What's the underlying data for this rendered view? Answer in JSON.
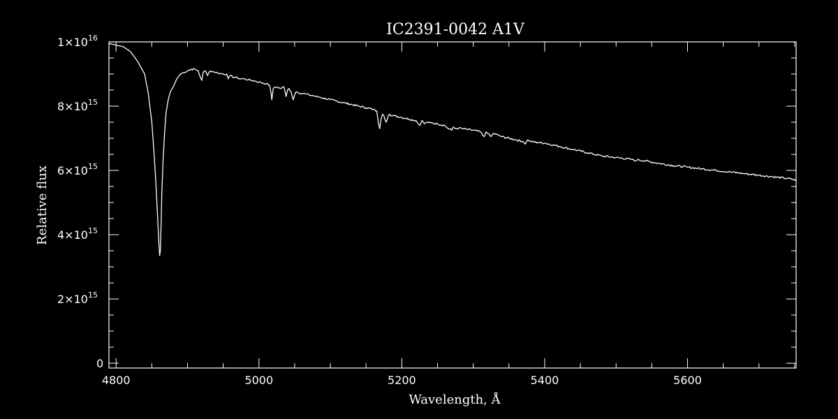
{
  "chart_data": {
    "type": "line",
    "title": "IC2391-0042  A1V",
    "xlabel": "Wavelength, Å",
    "ylabel": "Relative flux",
    "xlim": [
      4790,
      5752
    ],
    "ylim": [
      -150000000000000.0,
      1e+16
    ],
    "x_ticks": [
      4800,
      5000,
      5200,
      5400,
      5600
    ],
    "x_tick_labels": [
      "4800",
      "5000",
      "5200",
      "5400",
      "5600"
    ],
    "x_minor_step": 50,
    "y_ticks": [
      {
        "value": 0,
        "mantissa": "0",
        "exponent": ""
      },
      {
        "value": 2000000000000000.0,
        "mantissa": "2×10",
        "exponent": "15"
      },
      {
        "value": 4000000000000000.0,
        "mantissa": "4×10",
        "exponent": "15"
      },
      {
        "value": 6000000000000000.0,
        "mantissa": "6×10",
        "exponent": "15"
      },
      {
        "value": 8000000000000000.0,
        "mantissa": "8×10",
        "exponent": "15"
      },
      {
        "value": 1e+16,
        "mantissa": "1×10",
        "exponent": "16"
      }
    ],
    "y_minor_step": 500000000000000.0,
    "grid": false,
    "colors": {
      "background": "#000000",
      "foreground": "#ffffff",
      "line": "#ffffff"
    },
    "series": [
      {
        "x": [
          4790,
          4800,
          4810,
          4820,
          4830,
          4840,
          4845,
          4850,
          4853,
          4856,
          4858,
          4860,
          4861,
          4862,
          4863,
          4864,
          4866,
          4868,
          4870,
          4873,
          4876,
          4880,
          4885,
          4890,
          4895,
          4900,
          4905,
          4910,
          4915,
          4918,
          4920,
          4922,
          4925,
          4928,
          4930,
          4932,
          4935,
          4940,
          4945,
          4950,
          4955,
          4957,
          4960,
          4965,
          4970,
          4975,
          4980,
          4985,
          4990,
          4995,
          5000,
          5005,
          5010,
          5015,
          5017,
          5018,
          5020,
          5025,
          5030,
          5035,
          5038,
          5040,
          5042,
          5045,
          5048,
          5050,
          5052,
          5055,
          5060,
          5065,
          5070,
          5075,
          5080,
          5085,
          5090,
          5100,
          5110,
          5120,
          5130,
          5140,
          5150,
          5160,
          5165,
          5167,
          5169,
          5171,
          5173,
          5175,
          5178,
          5181,
          5183,
          5186,
          5190,
          5200,
          5210,
          5220,
          5225,
          5228,
          5232,
          5235,
          5240,
          5250,
          5260,
          5265,
          5270,
          5272,
          5275,
          5280,
          5285,
          5290,
          5300,
          5310,
          5315,
          5318,
          5320,
          5325,
          5328,
          5332,
          5335,
          5340,
          5350,
          5360,
          5370,
          5373,
          5376,
          5380,
          5390,
          5400,
          5420,
          5440,
          5460,
          5480,
          5500,
          5520,
          5528,
          5530,
          5540,
          5560,
          5580,
          5600,
          5620,
          5640,
          5660,
          5680,
          5700,
          5720,
          5740,
          5752
        ],
        "y": [
          9950000000000000.0,
          9900000000000000.0,
          9850000000000000.0,
          9700000000000000.0,
          9400000000000000.0,
          9000000000000000.0,
          8400000000000000.0,
          7500000000000000.0,
          6600000000000000.0,
          5500000000000000.0,
          4600000000000000.0,
          3700000000000000.0,
          3350000000000000.0,
          3500000000000000.0,
          4300000000000000.0,
          5300000000000000.0,
          6400000000000000.0,
          7200000000000000.0,
          7800000000000000.0,
          8200000000000000.0,
          8450000000000000.0,
          8600000000000000.0,
          8850000000000000.0,
          9000000000000000.0,
          9050000000000000.0,
          9100000000000000.0,
          9150000000000000.0,
          9150000000000000.0,
          9100000000000000.0,
          8900000000000000.0,
          8800000000000000.0,
          9050000000000000.0,
          9100000000000000.0,
          8950000000000000.0,
          9050000000000000.0,
          9100000000000000.0,
          9080000000000000.0,
          9050000000000000.0,
          9020000000000000.0,
          9000000000000000.0,
          9000000000000000.0,
          8850000000000000.0,
          8950000000000000.0,
          8900000000000000.0,
          8880000000000000.0,
          8850000000000000.0,
          8850000000000000.0,
          8820000000000000.0,
          8800000000000000.0,
          8780000000000000.0,
          8750000000000000.0,
          8720000000000000.0,
          8700000000000000.0,
          8650000000000000.0,
          8400000000000000.0,
          8200000000000000.0,
          8550000000000000.0,
          8600000000000000.0,
          8550000000000000.0,
          8600000000000000.0,
          8300000000000000.0,
          8500000000000000.0,
          8550000000000000.0,
          8450000000000000.0,
          8200000000000000.0,
          8350000000000000.0,
          8450000000000000.0,
          8420000000000000.0,
          8400000000000000.0,
          8380000000000000.0,
          8350000000000000.0,
          8330000000000000.0,
          8300000000000000.0,
          8280000000000000.0,
          8250000000000000.0,
          8200000000000000.0,
          8150000000000000.0,
          8100000000000000.0,
          8050000000000000.0,
          8000000000000000.0,
          7950000000000000.0,
          7900000000000000.0,
          7850000000000000.0,
          7500000000000000.0,
          7300000000000000.0,
          7600000000000000.0,
          7750000000000000.0,
          7700000000000000.0,
          7500000000000000.0,
          7700000000000000.0,
          7750000000000000.0,
          7700000000000000.0,
          7700000000000000.0,
          7650000000000000.0,
          7600000000000000.0,
          7550000000000000.0,
          7400000000000000.0,
          7550000000000000.0,
          7450000000000000.0,
          7500000000000000.0,
          7480000000000000.0,
          7450000000000000.0,
          7400000000000000.0,
          7300000000000000.0,
          7250000000000000.0,
          7350000000000000.0,
          7300000000000000.0,
          7320000000000000.0,
          7300000000000000.0,
          7280000000000000.0,
          7250000000000000.0,
          7200000000000000.0,
          7050000000000000.0,
          7200000000000000.0,
          7150000000000000.0,
          7050000000000000.0,
          7150000000000000.0,
          7120000000000000.0,
          7100000000000000.0,
          7050000000000000.0,
          7000000000000000.0,
          6950000000000000.0,
          6900000000000000.0,
          6820000000000000.0,
          6950000000000000.0,
          6900000000000000.0,
          6870000000000000.0,
          6850000000000000.0,
          6750000000000000.0,
          6650000000000000.0,
          6550000000000000.0,
          6450000000000000.0,
          6400000000000000.0,
          6350000000000000.0,
          6300000000000000.0,
          6330000000000000.0,
          6300000000000000.0,
          6220000000000000.0,
          6150000000000000.0,
          6100000000000000.0,
          6050000000000000.0,
          6000000000000000.0,
          5950000000000000.0,
          5900000000000000.0,
          5850000000000000.0,
          5800000000000000.0,
          5750000000000000.0,
          5700000000000000.0
        ]
      }
    ]
  }
}
